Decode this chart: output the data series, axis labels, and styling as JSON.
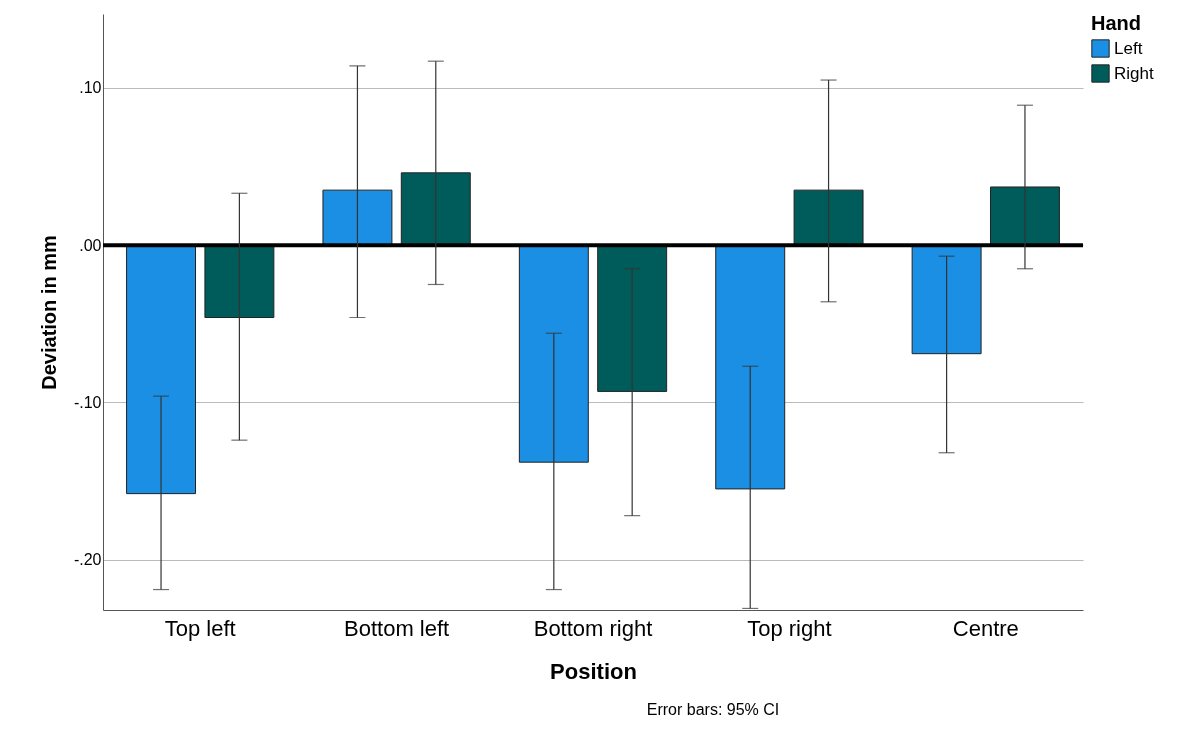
{
  "chart_data": {
    "type": "bar",
    "xlabel": "Position",
    "ylabel": "Deviation in mm",
    "legend_title": "Hand",
    "categories": [
      "Top left",
      "Bottom left",
      "Bottom right",
      "Top right",
      "Centre"
    ],
    "series": [
      {
        "name": "Left",
        "color": "#1a8fe3",
        "values": [
          -0.158,
          0.035,
          -0.138,
          -0.155,
          -0.069
        ],
        "errors": [
          [
            -0.219,
            -0.096
          ],
          [
            -0.046,
            0.114
          ],
          [
            -0.219,
            -0.056
          ],
          [
            -0.231,
            -0.077
          ],
          [
            -0.132,
            -0.007
          ]
        ]
      },
      {
        "name": "Right",
        "color": "#005c5a",
        "values": [
          -0.046,
          0.046,
          -0.093,
          0.035,
          0.037
        ],
        "errors": [
          [
            -0.124,
            0.033
          ],
          [
            -0.025,
            0.117
          ],
          [
            -0.172,
            -0.015
          ],
          [
            -0.036,
            0.105
          ],
          [
            -0.015,
            0.089
          ]
        ]
      }
    ],
    "ylim": [
      -0.232,
      0.147
    ],
    "yticks": [
      {
        "value": -0.2,
        "label": "-.20"
      },
      {
        "value": -0.1,
        "label": "-.10"
      },
      {
        "value": 0,
        "label": ".00"
      },
      {
        "value": 0.1,
        "label": ".10"
      }
    ],
    "grid": "y",
    "legend": "top right",
    "ref_lines": [
      {
        "axis": "y",
        "value": 0,
        "color": "#000000"
      }
    ],
    "annotations": [
      "Error bars: 95% CI"
    ]
  }
}
